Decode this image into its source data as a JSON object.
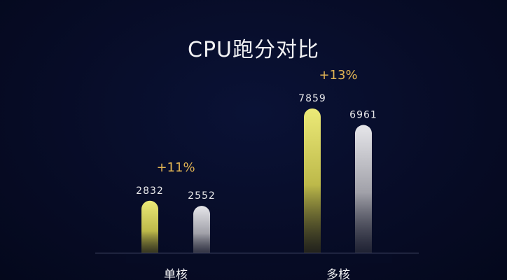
{
  "chart_data": {
    "type": "bar",
    "title": "CPU跑分对比",
    "categories": [
      "单核",
      "多核"
    ],
    "series": [
      {
        "values": [
          2832,
          7859
        ],
        "color": "#e7e173"
      },
      {
        "values": [
          2552,
          6961
        ],
        "color": "#d8d8dc"
      }
    ],
    "annotations": [
      "+11%",
      "+13%"
    ],
    "ylim": [
      0,
      8500
    ],
    "grid": false,
    "legend": "none"
  }
}
